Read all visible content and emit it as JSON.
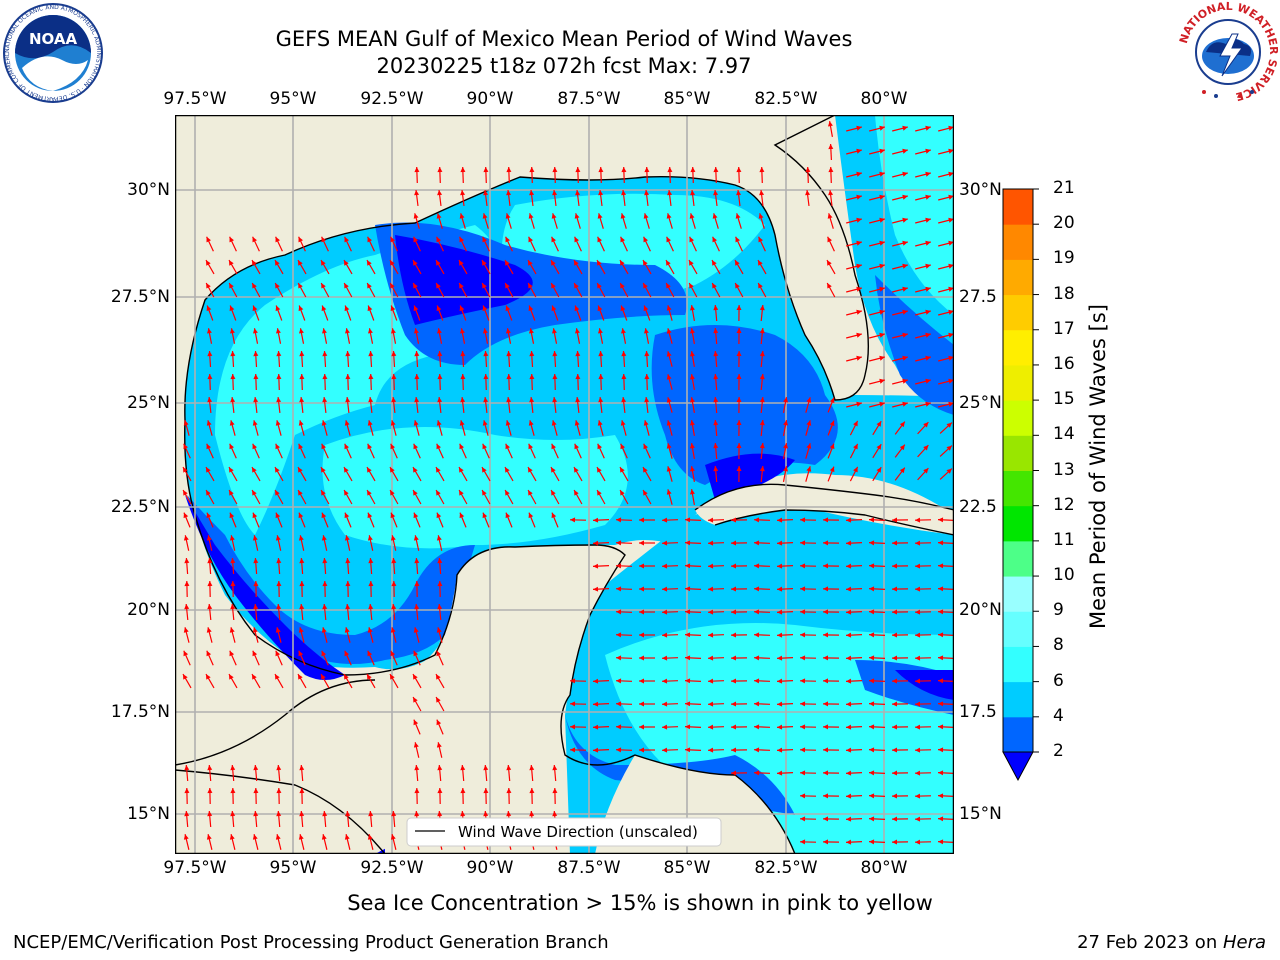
{
  "title": {
    "line1": "GEFS MEAN Gulf of Mexico Mean Period of Wind Waves",
    "line2": "20230225 t18z 072h fcst   Max: 7.97"
  },
  "lon_ticks": [
    "97.5°W",
    "95°W",
    "92.5°W",
    "90°W",
    "87.5°W",
    "85°W",
    "82.5°W",
    "80°W"
  ],
  "lat_ticks": [
    "30°N",
    "27.5°N",
    "25°N",
    "22.5°N",
    "20°N",
    "17.5°N",
    "15°N"
  ],
  "lat_ticks_right": [
    "30°N",
    "27.5",
    "25°N",
    "22.5",
    "20°N",
    "17.5",
    "15°N"
  ],
  "legend": {
    "label": "Wind Wave Direction (unscaled)"
  },
  "colorbar": {
    "label": "Mean Period of Wind Waves [s]",
    "ticks": [
      "2",
      "4",
      "6",
      "8",
      "9",
      "10",
      "11",
      "12",
      "13",
      "14",
      "15",
      "16",
      "17",
      "18",
      "19",
      "20",
      "21"
    ],
    "colors": [
      "#0066ff",
      "#00ccff",
      "#33ffff",
      "#66ffff",
      "#99ffff",
      "#4dff88",
      "#00e600",
      "#44e600",
      "#99e600",
      "#ccff00",
      "#eeee00",
      "#ffee00",
      "#ffcc00",
      "#ffaa00",
      "#ff8800",
      "#ff5500",
      "#ff2a00",
      "#ff0000"
    ],
    "under_color": "#0000ff"
  },
  "caption": "Sea Ice Concentration > 15% is shown in pink to yellow",
  "footer": {
    "left": "NCEP/EMC/Verification Post Processing Product Generation Branch",
    "right_date": "27 Feb 2023 on ",
    "right_host": "Hera"
  },
  "logos": {
    "noaa": "NOAA",
    "noaa_ring": "NATIONAL OCEANIC AND ATMOSPHERIC ADMINISTRATION · U.S. DEPARTMENT OF COMMERCE ·",
    "nws_ring": "NATIONAL WEATHER SERVICE"
  },
  "colors": {
    "land": "#efeddb",
    "ocean_light": "#33ffff",
    "ocean_mid": "#00ccff",
    "ocean_deep": "#0066ff",
    "ocean_under": "#0000ff",
    "arrow": "#ff0000",
    "grid": "#b0b0b0"
  }
}
